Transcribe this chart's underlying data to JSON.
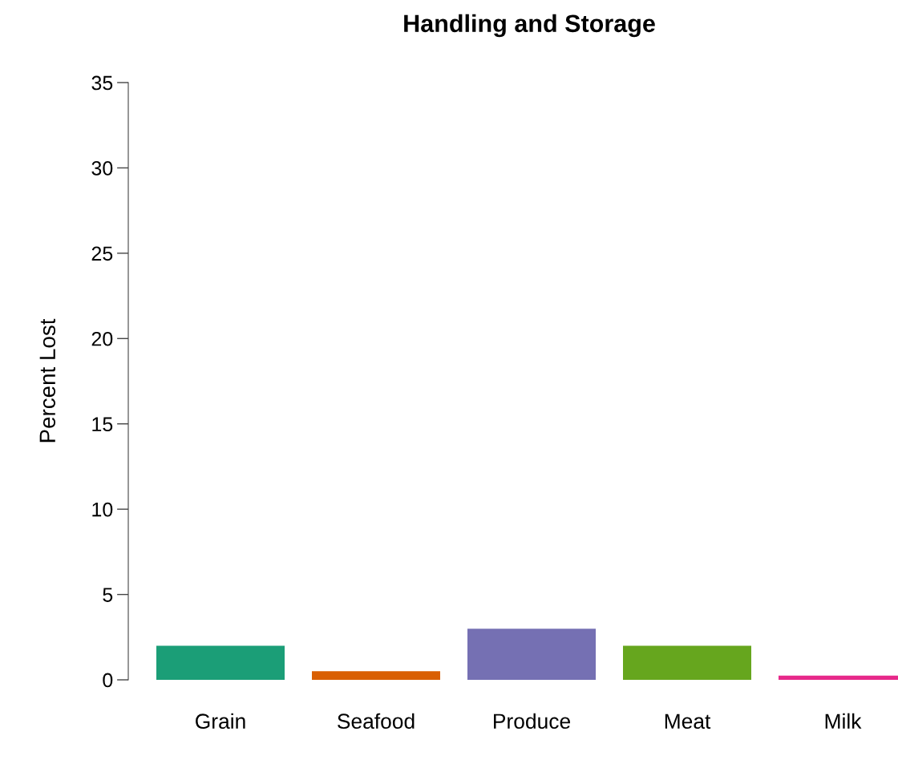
{
  "chart_data": {
    "type": "bar",
    "title": "Handling and Storage",
    "ylabel": "Percent Lost",
    "categories": [
      "Grain",
      "Seafood",
      "Produce",
      "Meat",
      "Milk"
    ],
    "values": [
      2,
      0.5,
      3,
      2,
      0.25
    ],
    "colors": [
      "#1b9e77",
      "#d95f02",
      "#7570b3",
      "#66a61e",
      "#e7298a"
    ],
    "ylim": [
      0,
      35
    ],
    "yticks": [
      0,
      5,
      10,
      15,
      20,
      25,
      30,
      35
    ],
    "grid": false,
    "legend": false
  }
}
